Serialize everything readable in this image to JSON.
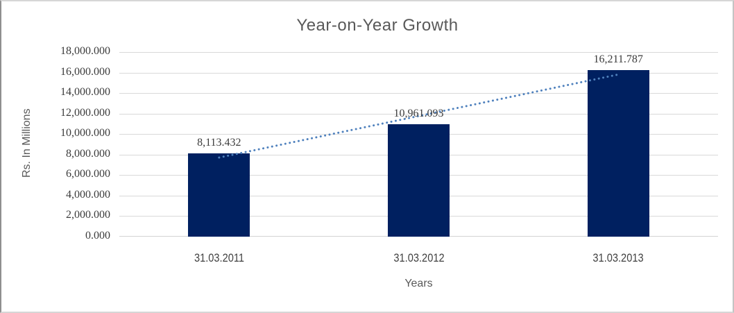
{
  "chart_data": {
    "type": "bar",
    "title": "Year-on-Year Growth",
    "xlabel": "Years",
    "ylabel": "Rs. In Millions",
    "categories": [
      "31.03.2011",
      "31.03.2012",
      "31.03.2013"
    ],
    "values": [
      8113.432,
      10961.093,
      16211.787
    ],
    "data_labels": [
      "8,113.432",
      "10,961.093",
      "16,211.787"
    ],
    "ylim": [
      0,
      18000
    ],
    "y_tick_step": 2000,
    "y_tick_labels": [
      "0.000",
      "2,000.000",
      "4,000.000",
      "6,000.000",
      "8,000.000",
      "10,000.000",
      "12,000.000",
      "14,000.000",
      "16,000.000",
      "18,000.000"
    ],
    "grid": true,
    "legend": false,
    "bar_color": "#002060",
    "gridline_color": "#d9d9d9",
    "axis_line_color": "#d3d3d3",
    "trendline": {
      "type": "linear",
      "style": "dotted",
      "color": "#4f81bd"
    },
    "title_color": "#595959",
    "text_color": "#3b3b3b"
  }
}
